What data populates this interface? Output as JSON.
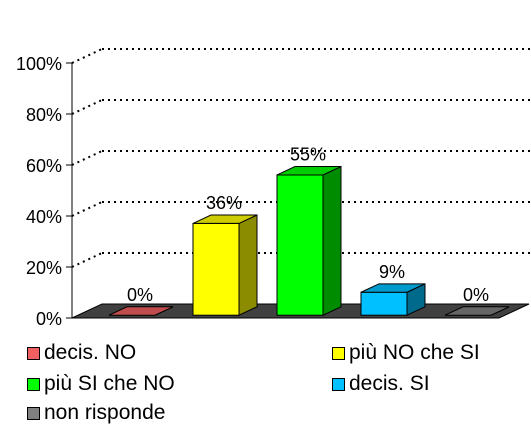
{
  "chart_data": {
    "type": "bar",
    "categories": [
      "decis. NO",
      "più NO che SI",
      "più SI che NO",
      "decis. SI",
      "non risponde"
    ],
    "values": [
      0,
      36,
      55,
      9,
      0
    ],
    "value_labels": [
      "0%",
      "36%",
      "55%",
      "9%",
      "0%"
    ],
    "y_ticks": [
      "0%",
      "20%",
      "40%",
      "60%",
      "80%",
      "100%"
    ],
    "ylim": [
      0,
      100
    ],
    "grid": "dotted horizontal",
    "style": "3d",
    "legend_position": "bottom",
    "colors": [
      "#f06060",
      "#ffff00",
      "#00ff00",
      "#00c0ff",
      "#808080"
    ],
    "floor_color": "#404040"
  }
}
